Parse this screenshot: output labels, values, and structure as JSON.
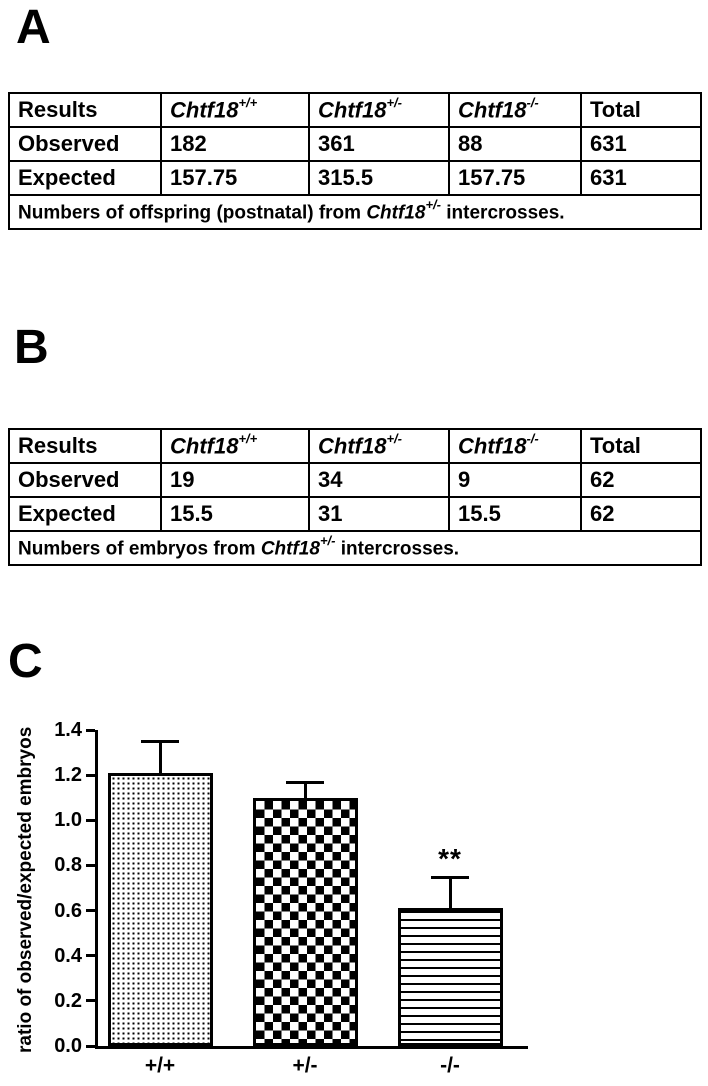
{
  "panelA": {
    "label": "A",
    "table": {
      "header": {
        "results": "Results",
        "gene": "Chtf18",
        "sup_wt": "+/+",
        "sup_het": "+/-",
        "sup_ko": "-/-",
        "total": "Total"
      },
      "observed": {
        "label": "Observed",
        "wt": "182",
        "het": "361",
        "ko": "88",
        "total": "631"
      },
      "expected": {
        "label": "Expected",
        "wt": "157.75",
        "het": "315.5",
        "ko": "157.75",
        "total": "631"
      },
      "caption": {
        "prefix": "Numbers of offspring (postnatal) from ",
        "gene": "Chtf18",
        "sup": "+/-",
        "suffix": " intercrosses."
      }
    }
  },
  "panelB": {
    "label": "B",
    "table": {
      "header": {
        "results": "Results",
        "gene": "Chtf18",
        "sup_wt": "+/+",
        "sup_het": "+/-",
        "sup_ko": "-/-",
        "total": "Total"
      },
      "observed": {
        "label": "Observed",
        "wt": "19",
        "het": "34",
        "ko": "9",
        "total": "62"
      },
      "expected": {
        "label": "Expected",
        "wt": "15.5",
        "het": "31",
        "ko": "15.5",
        "total": "62"
      },
      "caption": {
        "prefix": "Numbers of embryos from ",
        "gene": "Chtf18",
        "sup": "+/-",
        "suffix": " intercrosses."
      }
    }
  },
  "panelC": {
    "label": "C"
  },
  "chart_data": {
    "type": "bar",
    "title": "",
    "categories": [
      "+/+",
      "+/-",
      "-/-"
    ],
    "values": [
      1.21,
      1.1,
      0.61
    ],
    "errors_upper": [
      0.14,
      0.07,
      0.14
    ],
    "annotations": [
      {
        "category": "-/-",
        "text": "**"
      }
    ],
    "xlabel": "",
    "ylabel": "ratio of observed/expected embryos",
    "ylim": [
      0,
      1.4
    ],
    "yticks": [
      0.0,
      0.2,
      0.4,
      0.6,
      0.8,
      1.0,
      1.2,
      1.4
    ],
    "grid": false,
    "legend": "none",
    "bar_patterns": [
      "pattern-fine-dots",
      "pattern-checkerboard",
      "pattern-horizontal-lines"
    ],
    "bar_color": "#ffffff",
    "line_color": "#000000"
  }
}
